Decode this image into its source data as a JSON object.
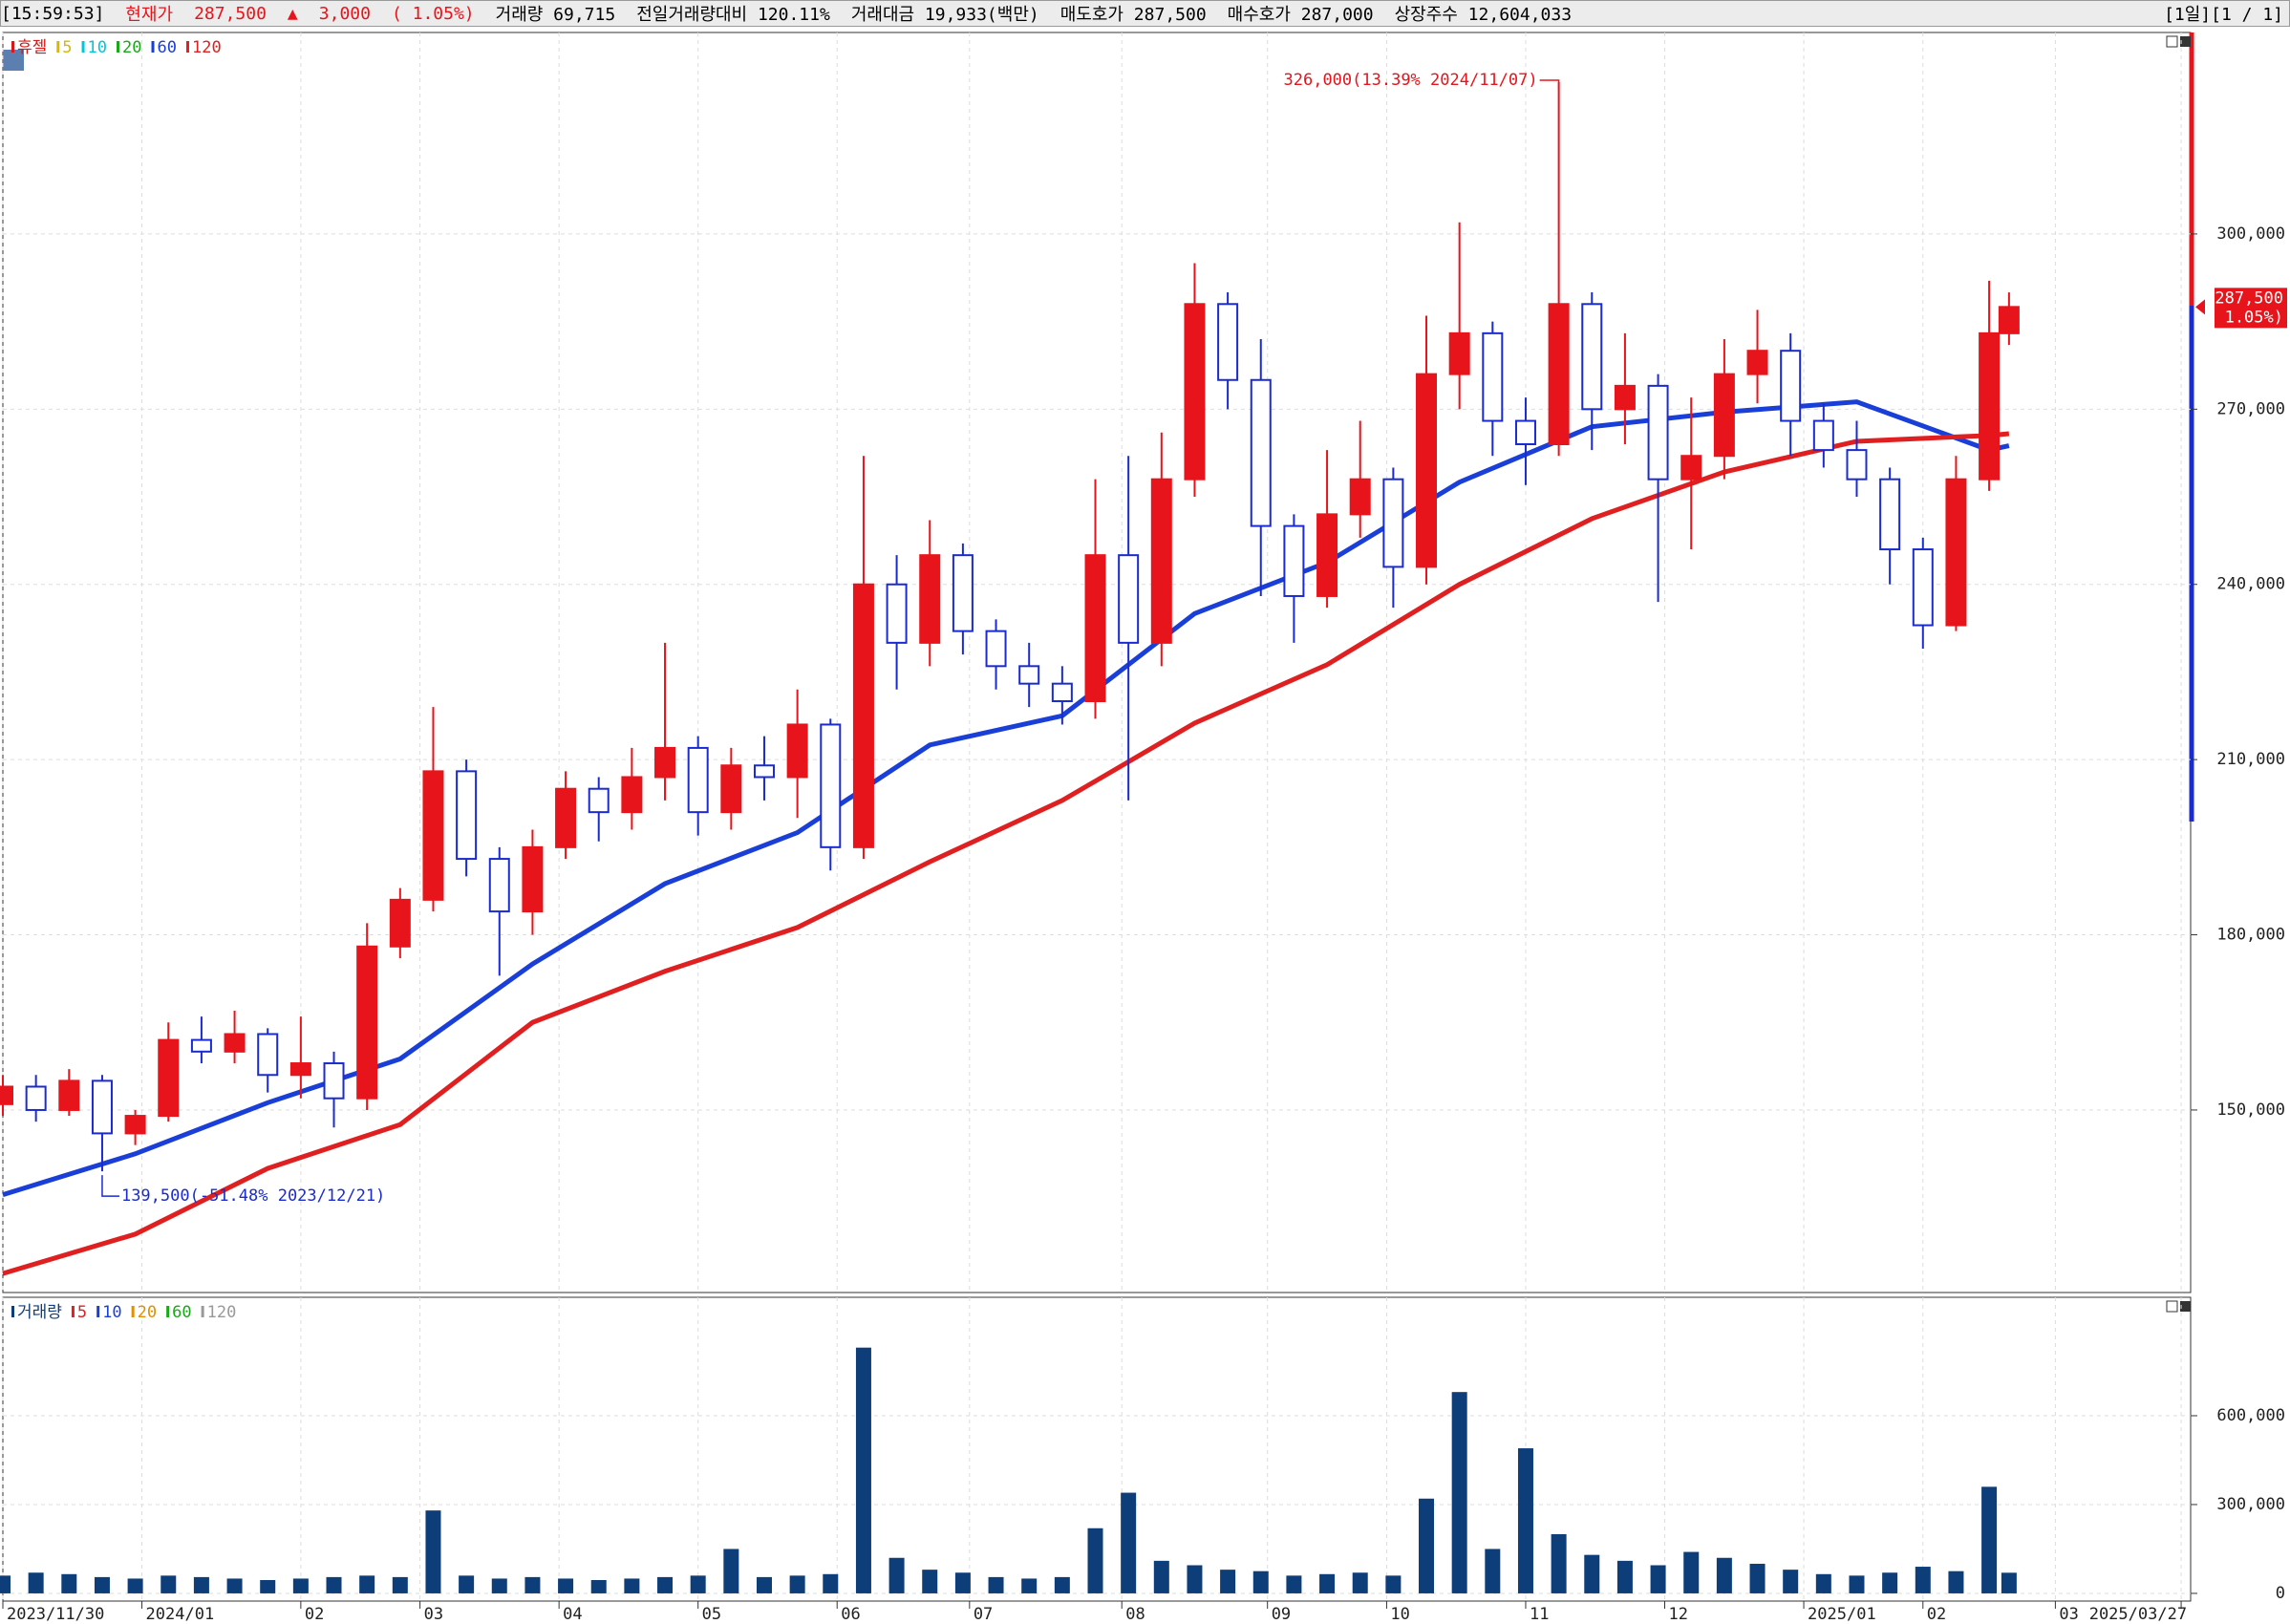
{
  "header": {
    "time": "[15:59:53]",
    "price_label": "현재가",
    "price": "287,500",
    "arrow": "▲",
    "change": "3,000",
    "change_pct": "( 1.05%)",
    "items": [
      "거래량 69,715",
      "전일거래량대비 120.11%",
      "거래대금 19,933(백만)",
      "매도호가 287,500",
      "매수호가 287,000",
      "상장주수 12,604,033"
    ],
    "paging": "[1일][1 / 1]"
  },
  "chart_data": [
    {
      "type": "candlestick",
      "legend": [
        {
          "name": "휴젤",
          "color": "#d81818"
        },
        {
          "name": "5",
          "color": "#d8b800"
        },
        {
          "name": "10",
          "color": "#00c8dc"
        },
        {
          "name": "20",
          "color": "#18a818"
        },
        {
          "name": "60",
          "color": "#1a3fd8"
        },
        {
          "name": "120",
          "color": "#e02020"
        }
      ],
      "up_color": "#e8141b",
      "down_color": "#1a2bd0",
      "x": [
        0,
        5,
        10,
        15,
        20,
        25,
        30,
        35,
        40,
        45,
        50,
        55,
        60,
        65,
        70,
        75,
        80,
        85,
        90,
        95,
        100,
        105,
        110,
        115,
        120,
        125,
        130,
        135,
        140,
        145,
        150,
        155,
        160,
        165,
        170,
        175,
        180,
        185,
        190,
        195,
        200,
        205,
        210,
        215,
        220,
        225,
        230,
        235,
        240,
        245,
        250,
        255,
        260,
        265,
        270,
        275,
        280,
        285,
        290,
        295,
        300,
        303
      ],
      "open": [
        151000,
        154000,
        150000,
        155000,
        146000,
        149000,
        162000,
        160000,
        163000,
        156000,
        158000,
        152000,
        178000,
        186000,
        208000,
        193000,
        184000,
        195000,
        205000,
        201000,
        207000,
        212000,
        201000,
        209000,
        207000,
        216000,
        195000,
        240000,
        230000,
        245000,
        232000,
        226000,
        223000,
        220000,
        245000,
        230000,
        258000,
        288000,
        275000,
        250000,
        238000,
        252000,
        258000,
        243000,
        276000,
        283000,
        268000,
        264000,
        288000,
        270000,
        274000,
        258000,
        262000,
        276000,
        280000,
        268000,
        263000,
        258000,
        246000,
        233000,
        258000,
        283000
      ],
      "high": [
        156000,
        156000,
        157000,
        156000,
        150000,
        165000,
        166000,
        167000,
        164000,
        166000,
        160000,
        182000,
        188000,
        219000,
        210000,
        195000,
        198000,
        208000,
        207000,
        212000,
        230000,
        214000,
        212000,
        214000,
        222000,
        217000,
        262000,
        245000,
        251000,
        247000,
        234000,
        230000,
        226000,
        258000,
        262000,
        266000,
        295000,
        290000,
        282000,
        252000,
        263000,
        268000,
        260000,
        286000,
        302000,
        285000,
        272000,
        326000,
        290000,
        283000,
        276000,
        272000,
        282000,
        287000,
        283000,
        271000,
        268000,
        260000,
        248000,
        262000,
        292000,
        290000
      ],
      "low": [
        149000,
        148000,
        149000,
        139500,
        144000,
        148000,
        158000,
        158000,
        153000,
        152000,
        147000,
        150000,
        176000,
        184000,
        190000,
        173000,
        180000,
        193000,
        196000,
        198000,
        203000,
        197000,
        198000,
        203000,
        200000,
        191000,
        193000,
        222000,
        226000,
        228000,
        222000,
        219000,
        216000,
        217000,
        203000,
        226000,
        255000,
        270000,
        238000,
        230000,
        236000,
        248000,
        236000,
        240000,
        270000,
        262000,
        257000,
        262000,
        263000,
        264000,
        237000,
        246000,
        258000,
        271000,
        262000,
        260000,
        255000,
        240000,
        229000,
        232000,
        256000,
        281000
      ],
      "close": [
        154000,
        150000,
        155000,
        146000,
        149000,
        162000,
        160000,
        163000,
        156000,
        158000,
        152000,
        178000,
        186000,
        208000,
        193000,
        184000,
        195000,
        205000,
        201000,
        207000,
        212000,
        201000,
        209000,
        207000,
        216000,
        195000,
        240000,
        230000,
        245000,
        232000,
        226000,
        223000,
        220000,
        245000,
        230000,
        258000,
        288000,
        275000,
        250000,
        238000,
        252000,
        258000,
        243000,
        276000,
        283000,
        268000,
        264000,
        288000,
        270000,
        274000,
        258000,
        262000,
        276000,
        280000,
        268000,
        263000,
        258000,
        246000,
        233000,
        258000,
        283000,
        287500
      ],
      "moving_averages": [
        {
          "name": "60",
          "color": "#1a3fd8",
          "x": [
            0,
            20,
            40,
            60,
            80,
            100,
            120,
            140,
            160,
            180,
            200,
            220,
            240,
            260,
            280,
            300,
            303
          ],
          "values": [
            135500,
            142500,
            151250,
            158750,
            175000,
            188750,
            197500,
            212500,
            217500,
            235000,
            243750,
            257500,
            267000,
            269500,
            271250,
            263000,
            263750
          ]
        },
        {
          "name": "120",
          "color": "#e02020",
          "x": [
            0,
            20,
            40,
            60,
            80,
            100,
            120,
            140,
            160,
            180,
            200,
            220,
            240,
            260,
            280,
            300,
            303
          ],
          "values": [
            122000,
            128750,
            140000,
            147500,
            165000,
            173750,
            181250,
            192500,
            203000,
            216250,
            226250,
            240000,
            251250,
            259250,
            264500,
            265500,
            265800
          ]
        }
      ],
      "annotations": [
        "326,000(13.39% 2024/11/07)",
        "139,500(-51.48% 2023/12/21)"
      ],
      "last_price_labels": [
        "287,500",
        "( 1.05%)"
      ],
      "xlim": [
        0,
        330
      ],
      "ylim": [
        118750,
        334500
      ],
      "yticks": [
        {
          "value": 150000,
          "label": "150,000"
        },
        {
          "value": 180000,
          "label": "180,000"
        },
        {
          "value": 210000,
          "label": "210,000"
        },
        {
          "value": 240000,
          "label": "240,000"
        },
        {
          "value": 270000,
          "label": "270,000"
        },
        {
          "value": 300000,
          "label": "300,000"
        }
      ],
      "grid": true
    },
    {
      "type": "bar",
      "legend": [
        {
          "name": "거래량",
          "color": "#0d3e7a"
        },
        {
          "name": "5",
          "color": "#e02020"
        },
        {
          "name": "10",
          "color": "#1a3fd8"
        },
        {
          "name": "20",
          "color": "#e09000"
        },
        {
          "name": "60",
          "color": "#18a818"
        },
        {
          "name": "120",
          "color": "#999999"
        }
      ],
      "color": "#0d3e7a",
      "x": [
        0,
        5,
        10,
        15,
        20,
        25,
        30,
        35,
        40,
        45,
        50,
        55,
        60,
        65,
        70,
        75,
        80,
        85,
        90,
        95,
        100,
        105,
        110,
        115,
        120,
        125,
        130,
        135,
        140,
        145,
        150,
        155,
        160,
        165,
        170,
        175,
        180,
        185,
        190,
        195,
        200,
        205,
        210,
        215,
        220,
        225,
        230,
        235,
        240,
        245,
        250,
        255,
        260,
        265,
        270,
        275,
        280,
        285,
        290,
        295,
        300,
        303
      ],
      "values": [
        60000,
        70000,
        65000,
        55000,
        50000,
        60000,
        55000,
        50000,
        45000,
        50000,
        55000,
        60000,
        55000,
        280000,
        60000,
        50000,
        55000,
        50000,
        45000,
        50000,
        55000,
        60000,
        150000,
        55000,
        60000,
        65000,
        830000,
        120000,
        80000,
        70000,
        55000,
        50000,
        55000,
        220000,
        340000,
        110000,
        95000,
        80000,
        75000,
        60000,
        65000,
        70000,
        60000,
        320000,
        680000,
        150000,
        490000,
        200000,
        130000,
        110000,
        95000,
        140000,
        120000,
        100000,
        80000,
        65000,
        60000,
        70000,
        90000,
        75000,
        360000,
        69715
      ],
      "xlim": [
        0,
        330
      ],
      "ylim": [
        -26000,
        1000000
      ],
      "yticks": [
        0,
        {
          "value": 300000,
          "label": "300,000"
        },
        {
          "value": 600000,
          "label": "600,000"
        }
      ],
      "xticks": [
        {
          "value": 0,
          "label": "2023/11/30"
        },
        {
          "value": 21,
          "label": "2024/01"
        },
        {
          "value": 45,
          "label": "02"
        },
        {
          "value": 63,
          "label": "03"
        },
        {
          "value": 84,
          "label": "04"
        },
        {
          "value": 105,
          "label": "05"
        },
        {
          "value": 126,
          "label": "06"
        },
        {
          "value": 146,
          "label": "07"
        },
        {
          "value": 169,
          "label": "08"
        },
        {
          "value": 191,
          "label": "09"
        },
        {
          "value": 209,
          "label": "10"
        },
        {
          "value": 230,
          "label": "11"
        },
        {
          "value": 251,
          "label": "12"
        },
        {
          "value": 272,
          "label": "2025/01"
        },
        {
          "value": 290,
          "label": "02"
        },
        {
          "value": 310,
          "label": "03"
        },
        {
          "value": 329,
          "label": "2025/03/27"
        }
      ],
      "grid": true
    }
  ]
}
